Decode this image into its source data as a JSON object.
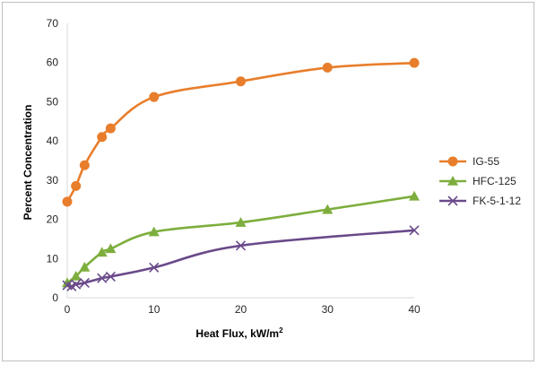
{
  "chart_data": {
    "type": "line",
    "title": "",
    "xlabel": "Heat Flux, kW/m",
    "xlabel_superscript": "2",
    "ylabel": "Percent Concentration",
    "xlim": [
      0,
      40
    ],
    "ylim": [
      0,
      70
    ],
    "xticks": [
      0,
      10,
      20,
      30,
      40
    ],
    "yticks": [
      0,
      10,
      20,
      30,
      40,
      50,
      60,
      70
    ],
    "grid": false,
    "legend_position": "right",
    "series": [
      {
        "name": "IG-55",
        "color": "#e87e2c",
        "marker": "circle",
        "x": [
          0,
          1,
          2,
          4,
          5,
          10,
          20,
          30,
          40
        ],
        "values": [
          24.5,
          28.5,
          33.8,
          41.0,
          43.2,
          51.2,
          55.2,
          58.7,
          59.9
        ]
      },
      {
        "name": "HFC-125",
        "color": "#7dae3d",
        "marker": "triangle",
        "x": [
          0,
          1,
          2,
          4,
          5,
          10,
          20,
          30,
          40
        ],
        "values": [
          3.8,
          5.5,
          7.8,
          11.6,
          12.5,
          16.8,
          19.2,
          22.5,
          25.9
        ]
      },
      {
        "name": "FK-5-1-12",
        "color": "#6a4a8a",
        "marker": "x",
        "x": [
          0,
          0.5,
          1,
          2,
          4,
          5,
          10,
          20,
          40
        ],
        "values": [
          3.2,
          2.9,
          3.4,
          3.8,
          5.0,
          5.4,
          7.7,
          13.3,
          17.2
        ]
      }
    ]
  }
}
